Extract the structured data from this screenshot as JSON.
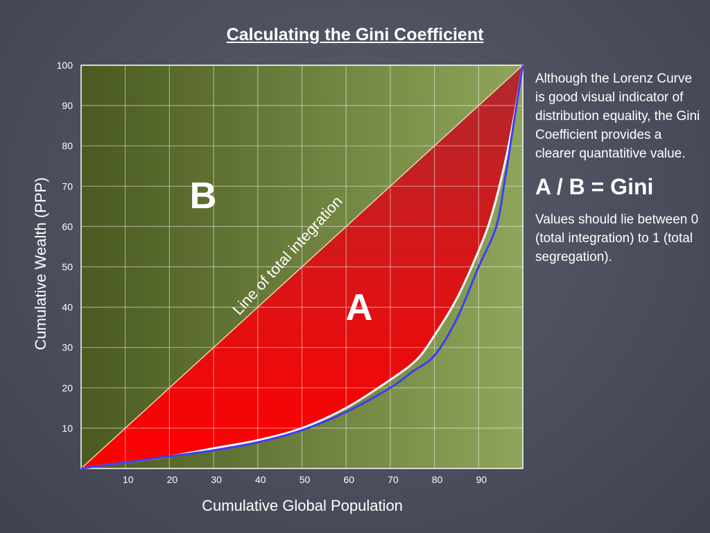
{
  "title": "Calculating the Gini Coefficient",
  "side_panel": {
    "intro": "Although the Lorenz Curve is  good visual indicator of distribution equality, the Gini Coefficient provides a clearer quantatitive value.",
    "formula": "A / B = Gini",
    "note": "Values should lie between 0 (total integration) to 1 (total segregation)."
  },
  "chart_data": {
    "type": "area",
    "title": "Calculating the Gini Coefficient",
    "xlabel": "Cumulative Global Population",
    "ylabel": "Cumulative Wealth (PPP)",
    "xlim": [
      0,
      100
    ],
    "ylim": [
      0,
      100
    ],
    "x_ticks": [
      10,
      20,
      30,
      40,
      50,
      60,
      70,
      80,
      90
    ],
    "y_ticks": [
      10,
      20,
      30,
      40,
      50,
      60,
      70,
      80,
      90,
      100
    ],
    "grid": true,
    "equality_line": {
      "label": "Line of total integration",
      "x": [
        0,
        100
      ],
      "y": [
        0,
        100
      ]
    },
    "region_labels": {
      "between_line_and_curve": "A",
      "above_line": "B"
    },
    "series": [
      {
        "color": "#ffffff",
        "x": [
          0,
          10,
          20,
          30,
          40,
          50,
          60,
          70,
          76,
          80,
          85,
          90,
          93,
          96,
          98,
          100
        ],
        "y": [
          0,
          1.5,
          3,
          5,
          7,
          10,
          15,
          22,
          27,
          33,
          42,
          54,
          63,
          76,
          87,
          100
        ]
      },
      {
        "color": "#3b3ff0",
        "x": [
          0,
          10,
          20,
          30,
          40,
          50,
          60,
          70,
          75,
          80,
          85,
          90,
          94,
          96,
          98,
          100
        ],
        "y": [
          0,
          1.5,
          3,
          4.5,
          6.5,
          9.5,
          14,
          20,
          24,
          28,
          37,
          50,
          60,
          72,
          86,
          100
        ]
      }
    ],
    "colors": {
      "region_a_top": "#b02a2e",
      "region_a_bottom": "#ff0000",
      "region_b_left": "#4a5a20",
      "region_b_right": "#8fa55a",
      "grid": "#ffffff"
    }
  }
}
